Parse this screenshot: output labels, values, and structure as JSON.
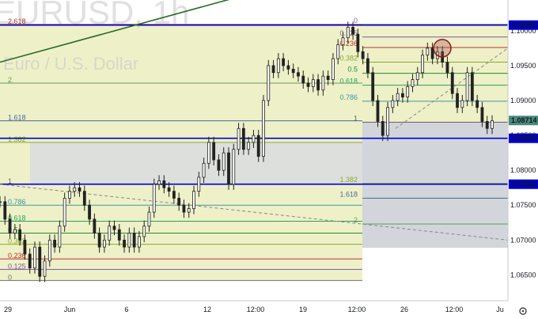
{
  "chart_data": {
    "type": "candlestick",
    "symbol_watermark": "EURUSD, 1h",
    "description_watermark": "Euro / U.S. Dollar",
    "x_ticks": [
      "29",
      "Jun",
      "6",
      "12",
      "12:00",
      "19",
      "12:00",
      "26",
      "12:00",
      "Ju"
    ],
    "y_ticks": [
      1.1,
      1.095,
      1.09,
      1.085,
      1.08,
      1.075,
      1.07,
      1.065
    ],
    "y_range": [
      1.0613,
      1.1035
    ],
    "price_tags": [
      {
        "label": "1.10081",
        "value": 1.10081,
        "bg": "#0000cc",
        "fg": "#ffffff"
      },
      {
        "label": "1.08714",
        "value": 1.08714,
        "bg": "#4a8a7a",
        "fg": "#ffffff"
      },
      {
        "label": "1.08459",
        "value": 1.08459,
        "bg": "#0000cc",
        "fg": "#ffffff"
      },
      {
        "label": "1.07801",
        "value": 1.07801,
        "bg": "#0000cc",
        "fg": "#ffffff"
      }
    ],
    "horizontal_lines": [
      1.10081,
      1.08459,
      1.07801
    ],
    "fib_left": {
      "levels": [
        {
          "label": "2.618",
          "value": 1.1009,
          "color": "#b03030"
        },
        {
          "label": "2",
          "value": 1.0925,
          "color": "#5aa05a"
        },
        {
          "label": "1.618",
          "value": 1.0871,
          "color": "#4a6a9a"
        },
        {
          "label": "1.382",
          "value": 1.084,
          "color": "#8aaa2a"
        },
        {
          "label": "1",
          "value": 1.078,
          "color": "#606060"
        },
        {
          "label": "0.786",
          "value": 1.075,
          "color": "#3a9aa0"
        },
        {
          "label": "0.618",
          "value": 1.0727,
          "color": "#2aa05a"
        },
        {
          "label": "0.5",
          "value": 1.071,
          "color": "#2a8a2a"
        },
        {
          "label": "0.382",
          "value": 1.0694,
          "color": "#8aaa2a"
        },
        {
          "label": "0.236",
          "value": 1.0673,
          "color": "#c03030"
        },
        {
          "label": "0.125",
          "value": 1.0658,
          "color": "#7a5aa0"
        },
        {
          "label": "0",
          "value": 1.0642,
          "color": "#707070"
        }
      ]
    },
    "fib_right": {
      "levels": [
        {
          "label": "0",
          "value": 1.1009,
          "color": "#707070"
        },
        {
          "label": "0.125",
          "value": 1.0991,
          "color": "#7a5aa0"
        },
        {
          "label": "0.236",
          "value": 1.0976,
          "color": "#c03030"
        },
        {
          "label": "0.382",
          "value": 1.0955,
          "color": "#8aaa2a"
        },
        {
          "label": "0.5",
          "value": 1.0939,
          "color": "#2a8a2a"
        },
        {
          "label": "0.618",
          "value": 1.0922,
          "color": "#2aa05a"
        },
        {
          "label": "0.786",
          "value": 1.0899,
          "color": "#3a9aa0"
        },
        {
          "label": "1",
          "value": 1.0869,
          "color": "#606060"
        },
        {
          "label": "1.382",
          "value": 1.0781,
          "color": "#8aaa2a"
        },
        {
          "label": "1.618",
          "value": 1.076,
          "color": "#4a6a9a"
        },
        {
          "label": "2",
          "value": 1.0723,
          "color": "#5aa05a"
        }
      ]
    },
    "price_series": [
      1.0755,
      1.073,
      1.071,
      1.0715,
      1.07,
      1.068,
      1.066,
      1.069,
      1.0648,
      1.067,
      1.07,
      1.069,
      1.072,
      1.076,
      1.077,
      1.0775,
      1.077,
      1.075,
      1.073,
      1.071,
      1.069,
      1.07,
      1.072,
      1.0715,
      1.07,
      1.069,
      1.071,
      1.069,
      1.0705,
      1.072,
      1.074,
      1.078,
      1.0785,
      1.0775,
      1.077,
      1.076,
      1.075,
      1.074,
      1.0745,
      1.077,
      1.079,
      1.081,
      1.084,
      1.0815,
      1.08,
      1.0825,
      1.078,
      1.083,
      1.086,
      1.083,
      1.084,
      1.085,
      1.082,
      1.09,
      1.095,
      1.094,
      1.096,
      1.095,
      1.0945,
      1.094,
      1.0935,
      1.0925,
      1.092,
      1.093,
      1.0915,
      1.0935,
      1.093,
      1.096,
      1.098,
      1.099,
      1.1005,
      1.0995,
      1.097,
      1.096,
      1.094,
      1.09,
      1.087,
      1.085,
      1.089,
      1.09,
      1.091,
      1.0905,
      1.092,
      1.093,
      1.094,
      1.0965,
      1.0975,
      1.096,
      1.097,
      1.0955,
      1.094,
      1.091,
      1.089,
      1.09,
      1.094,
      1.09,
      1.089,
      1.087,
      1.086,
      1.0871
    ],
    "highlight_circle": {
      "value": 1.0975
    },
    "trendline_dark": {
      "from": 1.0955,
      "to": 1.1045,
      "color": "#2a6a2a"
    },
    "trendline_dashed_left": {
      "from": 1.078,
      "to": 1.07,
      "color": "#888888"
    },
    "trendline_dashed_right": {
      "from": 1.086,
      "to": 1.0975,
      "color": "#888888"
    },
    "colors": {
      "zone_yellow": "#eef0c8",
      "zone_grey": "#d2d6da",
      "zone_left_grey": "#dcdfdc",
      "up": "#222222"
    }
  }
}
